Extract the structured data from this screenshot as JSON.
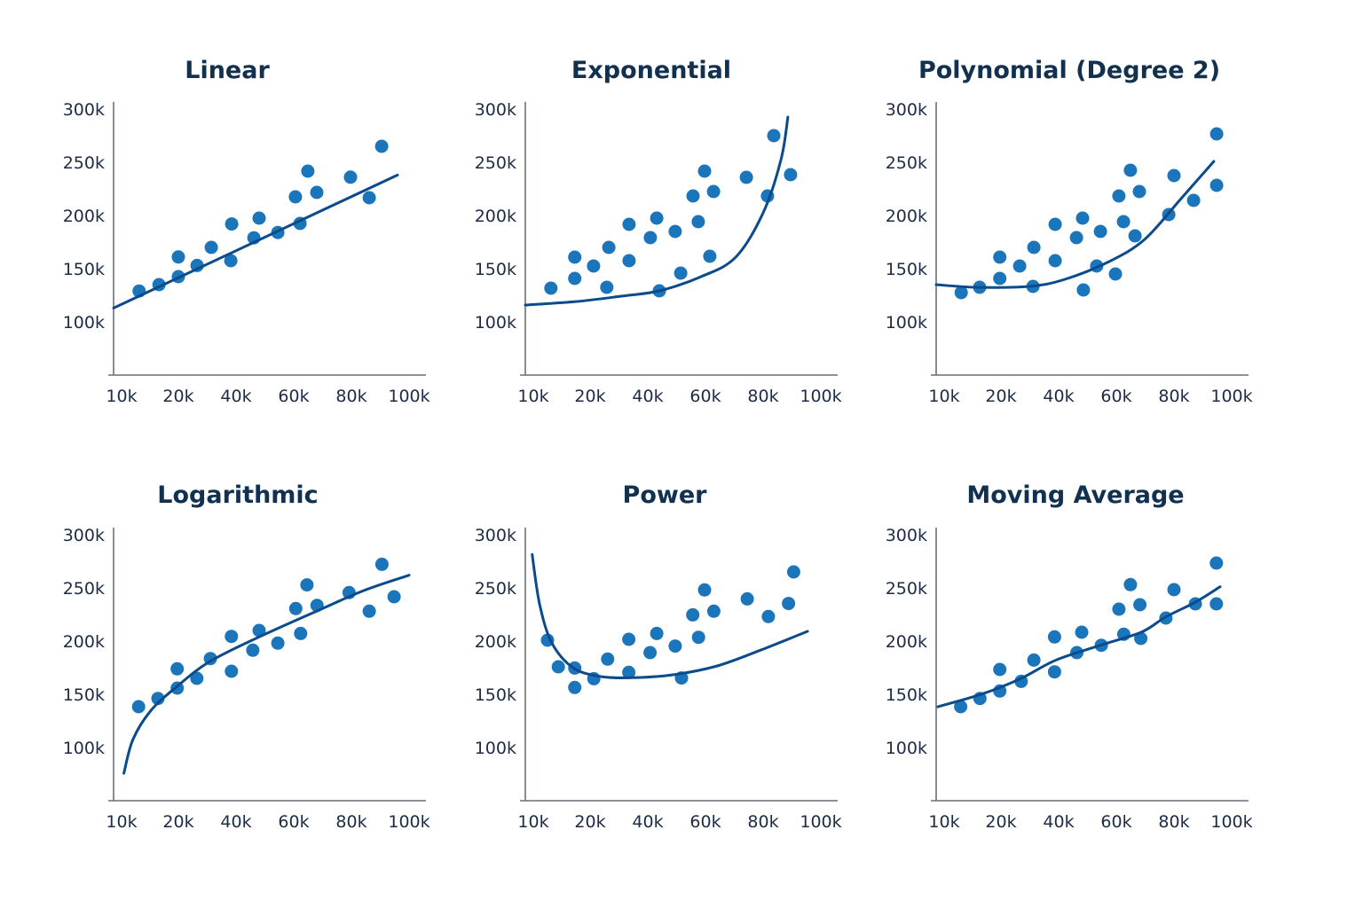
{
  "colors": {
    "points": "#1b75bb",
    "trendline": "#0b4a8b",
    "title": "#12304f",
    "axis": "#6b6f78",
    "tick_text": "#1c2c45"
  },
  "chart_data": [
    {
      "type": "scatter",
      "title": "Linear",
      "trendline_type": "linear",
      "x_ticks": [
        10000,
        20000,
        40000,
        60000,
        80000,
        100000
      ],
      "x_tick_labels": [
        "10k",
        "20k",
        "40k",
        "60k",
        "80k",
        "100k"
      ],
      "y_ticks": [
        300000,
        250000,
        200000,
        150000,
        100000
      ],
      "y_tick_labels": [
        "300k",
        "250k",
        "200k",
        "150k",
        "100k"
      ],
      "ylim": [
        50000,
        300000
      ],
      "grid": false,
      "points": [
        [
          13100,
          129000
        ],
        [
          16600,
          135000
        ],
        [
          20000,
          142500
        ],
        [
          20000,
          161000
        ],
        [
          26500,
          153000
        ],
        [
          31400,
          170000
        ],
        [
          38500,
          192000
        ],
        [
          38200,
          157500
        ],
        [
          46200,
          179000
        ],
        [
          48000,
          197500
        ],
        [
          54500,
          184000
        ],
        [
          60600,
          217500
        ],
        [
          62200,
          192500
        ],
        [
          64900,
          241700
        ],
        [
          68000,
          221700
        ],
        [
          79700,
          236000
        ],
        [
          86200,
          216700
        ],
        [
          90500,
          265000
        ]
      ],
      "trendline": [
        [
          8600,
          113000
        ],
        [
          96000,
          238000
        ]
      ]
    },
    {
      "type": "scatter",
      "title": "Exponential",
      "trendline_type": "exponential",
      "x_ticks": [
        10000,
        20000,
        40000,
        60000,
        80000,
        100000
      ],
      "x_tick_labels": [
        "10k",
        "20k",
        "40k",
        "60k",
        "80k",
        "100k"
      ],
      "y_ticks": [
        300000,
        250000,
        200000,
        150000,
        100000
      ],
      "y_tick_labels": [
        "300k",
        "250k",
        "200k",
        "150k",
        "100k"
      ],
      "ylim": [
        50000,
        300000
      ],
      "grid": false,
      "points": [
        [
          13100,
          131700
        ],
        [
          17300,
          160800
        ],
        [
          17300,
          140800
        ],
        [
          21200,
          152500
        ],
        [
          26500,
          170000
        ],
        [
          25800,
          132500
        ],
        [
          33500,
          191700
        ],
        [
          33500,
          157500
        ],
        [
          40900,
          179200
        ],
        [
          43100,
          197500
        ],
        [
          44000,
          129200
        ],
        [
          49500,
          185000
        ],
        [
          51400,
          145800
        ],
        [
          55700,
          218300
        ],
        [
          57500,
          194200
        ],
        [
          59700,
          241700
        ],
        [
          61500,
          161700
        ],
        [
          62800,
          222500
        ],
        [
          74200,
          235800
        ],
        [
          81500,
          218300
        ],
        [
          83700,
          275000
        ],
        [
          89500,
          238300
        ]
      ],
      "trendline": [
        [
          8600,
          115800
        ],
        [
          17700,
          119200
        ],
        [
          30800,
          124200
        ],
        [
          44000,
          129200
        ],
        [
          58500,
          142500
        ],
        [
          70500,
          160800
        ],
        [
          80000,
          202500
        ],
        [
          86200,
          252500
        ],
        [
          88600,
          292500
        ]
      ]
    },
    {
      "type": "scatter",
      "title": "Polynomial (Degree 2)",
      "trendline_type": "polynomial",
      "x_ticks": [
        10000,
        20000,
        40000,
        60000,
        80000,
        100000
      ],
      "x_tick_labels": [
        "10k",
        "20k",
        "40k",
        "60k",
        "80k",
        "100k"
      ],
      "y_ticks": [
        300000,
        250000,
        200000,
        150000,
        100000
      ],
      "y_tick_labels": [
        "300k",
        "250k",
        "200k",
        "150k",
        "100k"
      ],
      "ylim": [
        50000,
        300000
      ],
      "grid": false,
      "points": [
        [
          13000,
          127500
        ],
        [
          16250,
          132500
        ],
        [
          19800,
          140800
        ],
        [
          19800,
          160800
        ],
        [
          26500,
          152500
        ],
        [
          31400,
          170000
        ],
        [
          31100,
          133300
        ],
        [
          38800,
          191700
        ],
        [
          38800,
          157500
        ],
        [
          46200,
          179200
        ],
        [
          48300,
          197500
        ],
        [
          48600,
          130000
        ],
        [
          54500,
          185000
        ],
        [
          53200,
          152500
        ],
        [
          59700,
          145000
        ],
        [
          60900,
          218300
        ],
        [
          62500,
          194200
        ],
        [
          64900,
          242500
        ],
        [
          66500,
          180800
        ],
        [
          68000,
          222500
        ],
        [
          78200,
          200800
        ],
        [
          80000,
          237500
        ],
        [
          86800,
          214200
        ],
        [
          94800,
          276700
        ],
        [
          94800,
          228300
        ]
      ],
      "trendline": [
        [
          8600,
          135000
        ],
        [
          15600,
          132500
        ],
        [
          29800,
          133300
        ],
        [
          42200,
          140000
        ],
        [
          57500,
          156700
        ],
        [
          69800,
          177500
        ],
        [
          82200,
          215000
        ],
        [
          93800,
          250800
        ]
      ]
    },
    {
      "type": "scatter",
      "title": "Logarithmic",
      "trendline_type": "logarithmic",
      "x_ticks": [
        10000,
        20000,
        40000,
        60000,
        80000,
        100000
      ],
      "x_tick_labels": [
        "10k",
        "20k",
        "40k",
        "60k",
        "80k",
        "100k"
      ],
      "y_ticks": [
        300000,
        250000,
        200000,
        150000,
        100000
      ],
      "y_tick_labels": [
        "300k",
        "250k",
        "200k",
        "150k",
        "100k"
      ],
      "ylim": [
        50000,
        300000
      ],
      "grid": false,
      "points": [
        [
          13000,
          138300
        ],
        [
          16400,
          146100
        ],
        [
          19800,
          173900
        ],
        [
          19800,
          155800
        ],
        [
          26400,
          165000
        ],
        [
          31100,
          183600
        ],
        [
          38400,
          204400
        ],
        [
          38400,
          171700
        ],
        [
          45800,
          191400
        ],
        [
          48000,
          210000
        ],
        [
          54500,
          198100
        ],
        [
          60700,
          230600
        ],
        [
          62400,
          207200
        ],
        [
          64600,
          252800
        ],
        [
          68100,
          233600
        ],
        [
          79200,
          245600
        ],
        [
          86200,
          228100
        ],
        [
          90600,
          272200
        ],
        [
          94800,
          241700
        ]
      ],
      "trendline": [
        [
          10400,
          75800
        ],
        [
          12000,
          107500
        ],
        [
          15200,
          135000
        ],
        [
          19800,
          157500
        ],
        [
          30900,
          180800
        ],
        [
          48400,
          204400
        ],
        [
          69000,
          229400
        ],
        [
          84300,
          247500
        ],
        [
          100000,
          261900
        ]
      ]
    },
    {
      "type": "scatter",
      "title": "Power",
      "trendline_type": "power",
      "x_ticks": [
        10000,
        20000,
        40000,
        60000,
        80000,
        100000
      ],
      "x_tick_labels": [
        "10k",
        "20k",
        "40k",
        "60k",
        "80k",
        "100k"
      ],
      "y_ticks": [
        300000,
        250000,
        200000,
        150000,
        100000
      ],
      "y_tick_labels": [
        "300k",
        "250k",
        "200k",
        "150k",
        "100k"
      ],
      "ylim": [
        50000,
        300000
      ],
      "grid": false,
      "points": [
        [
          12500,
          200800
        ],
        [
          14400,
          175800
        ],
        [
          17300,
          174700
        ],
        [
          17300,
          156400
        ],
        [
          21300,
          164700
        ],
        [
          26100,
          183100
        ],
        [
          33400,
          201700
        ],
        [
          33400,
          170600
        ],
        [
          40800,
          189200
        ],
        [
          43100,
          207200
        ],
        [
          49500,
          195300
        ],
        [
          51700,
          165300
        ],
        [
          55600,
          224700
        ],
        [
          57600,
          203600
        ],
        [
          59700,
          248100
        ],
        [
          62900,
          228100
        ],
        [
          74500,
          239700
        ],
        [
          81800,
          223100
        ],
        [
          88800,
          235300
        ],
        [
          90600,
          265000
        ]
      ],
      "trendline": [
        [
          9800,
          281400
        ],
        [
          11100,
          235000
        ],
        [
          13200,
          198900
        ],
        [
          16900,
          175300
        ],
        [
          23100,
          166900
        ],
        [
          34400,
          165600
        ],
        [
          48700,
          168300
        ],
        [
          64100,
          176700
        ],
        [
          79500,
          191900
        ],
        [
          95400,
          209200
        ]
      ]
    },
    {
      "type": "scatter",
      "title": "Moving Average",
      "trendline_type": "moving-average",
      "x_ticks": [
        10000,
        20000,
        40000,
        60000,
        80000,
        100000
      ],
      "x_tick_labels": [
        "10k",
        "20k",
        "40k",
        "60k",
        "80k",
        "100k"
      ],
      "y_ticks": [
        300000,
        250000,
        200000,
        150000,
        100000
      ],
      "y_tick_labels": [
        "300k",
        "250k",
        "200k",
        "150k",
        "100k"
      ],
      "ylim": [
        50000,
        300000
      ],
      "grid": false,
      "points": [
        [
          12900,
          138300
        ],
        [
          16300,
          146100
        ],
        [
          19800,
          173300
        ],
        [
          19800,
          153100
        ],
        [
          27000,
          162200
        ],
        [
          31400,
          182200
        ],
        [
          38600,
          203900
        ],
        [
          38600,
          171100
        ],
        [
          46300,
          189200
        ],
        [
          48000,
          208300
        ],
        [
          54800,
          196100
        ],
        [
          60900,
          230000
        ],
        [
          62600,
          206400
        ],
        [
          64900,
          253100
        ],
        [
          68200,
          234200
        ],
        [
          68500,
          202500
        ],
        [
          77200,
          221700
        ],
        [
          80000,
          248300
        ],
        [
          87400,
          235000
        ],
        [
          94700,
          235000
        ],
        [
          94700,
          273300
        ]
      ],
      "trendline": [
        [
          8900,
          138300
        ],
        [
          16700,
          150300
        ],
        [
          26800,
          164700
        ],
        [
          39100,
          182200
        ],
        [
          54500,
          196100
        ],
        [
          68800,
          208600
        ],
        [
          77000,
          222500
        ],
        [
          87300,
          236400
        ],
        [
          96000,
          251100
        ]
      ]
    }
  ]
}
